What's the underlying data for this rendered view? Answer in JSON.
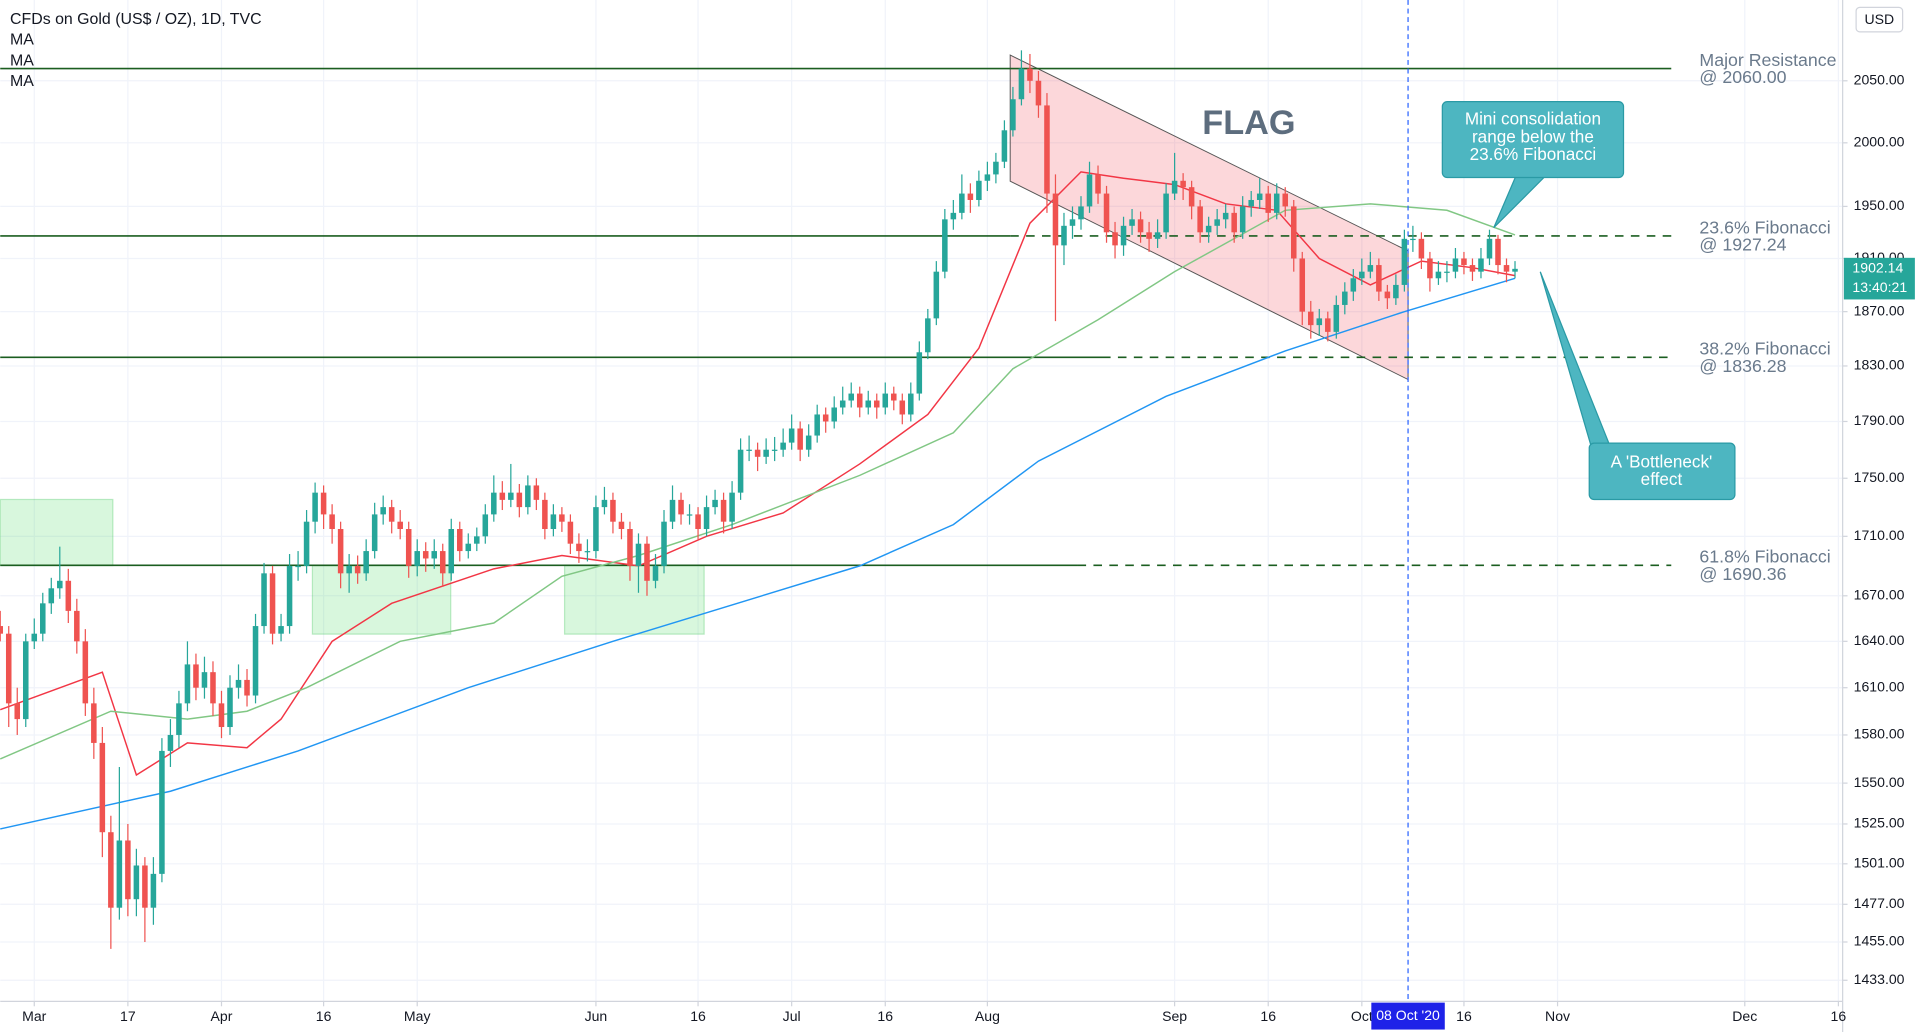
{
  "chart_data": {
    "type": "candlestick",
    "title": "CFDs on Gold (US$ / OZ), 1D, TVC",
    "currency": "USD",
    "pattern_label": "FLAG",
    "crosshair_label": "08 Oct '20",
    "last_price": {
      "value": 1902.14,
      "label": "1902.14"
    },
    "countdown": "13:40:21",
    "log_scale": true,
    "grid": true,
    "up_color": "#26a69a",
    "down_color": "#ef5350",
    "xlim": [
      0,
      216.5
    ],
    "ylim": [
      1421,
      2117
    ],
    "xticks": [
      {
        "value": 4,
        "label": "Mar"
      },
      {
        "value": 15,
        "label": "17"
      },
      {
        "value": 26,
        "label": "Apr"
      },
      {
        "value": 38,
        "label": "16"
      },
      {
        "value": 49,
        "label": "May"
      },
      {
        "value": 70,
        "label": "Jun"
      },
      {
        "value": 82,
        "label": "16"
      },
      {
        "value": 93,
        "label": "Jul"
      },
      {
        "value": 104,
        "label": "16"
      },
      {
        "value": 116,
        "label": "Aug"
      },
      {
        "value": 138,
        "label": "Sep"
      },
      {
        "value": 149,
        "label": "16"
      },
      {
        "value": 160,
        "label": "Oct"
      },
      {
        "value": 172,
        "label": "16"
      },
      {
        "value": 183,
        "label": "Nov"
      },
      {
        "value": 205,
        "label": "Dec"
      },
      {
        "value": 216,
        "label": "16"
      }
    ],
    "yticks": [
      {
        "value": 2050,
        "label": "2050.00"
      },
      {
        "value": 2000,
        "label": "2000.00"
      },
      {
        "value": 1950,
        "label": "1950.00"
      },
      {
        "value": 1910,
        "label": "1910.00"
      },
      {
        "value": 1870,
        "label": "1870.00"
      },
      {
        "value": 1830,
        "label": "1830.00"
      },
      {
        "value": 1790,
        "label": "1790.00"
      },
      {
        "value": 1750,
        "label": "1750.00"
      },
      {
        "value": 1710,
        "label": "1710.00"
      },
      {
        "value": 1670,
        "label": "1670.00"
      },
      {
        "value": 1640,
        "label": "1640.00"
      },
      {
        "value": 1610,
        "label": "1610.00"
      },
      {
        "value": 1580,
        "label": "1580.00"
      },
      {
        "value": 1550,
        "label": "1550.00"
      },
      {
        "value": 1525,
        "label": "1525.00"
      },
      {
        "value": 1501,
        "label": "1501.00"
      },
      {
        "value": 1477,
        "label": "1477.00"
      },
      {
        "value": 1455,
        "label": "1455.00"
      },
      {
        "value": 1433,
        "label": "1433.00"
      }
    ],
    "ohlc": [
      [
        1650,
        1660,
        1640,
        1645
      ],
      [
        1645,
        1650,
        1585,
        1600
      ],
      [
        1600,
        1610,
        1580,
        1590
      ],
      [
        1590,
        1645,
        1585,
        1640
      ],
      [
        1640,
        1655,
        1635,
        1645
      ],
      [
        1645,
        1672,
        1640,
        1665
      ],
      [
        1665,
        1682,
        1658,
        1675
      ],
      [
        1675,
        1703,
        1668,
        1680
      ],
      [
        1680,
        1688,
        1652,
        1660
      ],
      [
        1660,
        1668,
        1632,
        1640
      ],
      [
        1640,
        1648,
        1592,
        1600
      ],
      [
        1600,
        1610,
        1565,
        1575
      ],
      [
        1575,
        1585,
        1505,
        1520
      ],
      [
        1520,
        1530,
        1451,
        1475
      ],
      [
        1475,
        1560,
        1468,
        1515
      ],
      [
        1515,
        1525,
        1470,
        1480
      ],
      [
        1480,
        1510,
        1470,
        1500
      ],
      [
        1500,
        1505,
        1455,
        1475
      ],
      [
        1475,
        1505,
        1465,
        1495
      ],
      [
        1495,
        1578,
        1490,
        1570
      ],
      [
        1570,
        1590,
        1560,
        1580
      ],
      [
        1580,
        1608,
        1572,
        1600
      ],
      [
        1600,
        1640,
        1595,
        1625
      ],
      [
        1625,
        1632,
        1602,
        1610
      ],
      [
        1610,
        1630,
        1603,
        1620
      ],
      [
        1620,
        1627,
        1592,
        1600
      ],
      [
        1600,
        1608,
        1578,
        1585
      ],
      [
        1585,
        1618,
        1580,
        1610
      ],
      [
        1610,
        1625,
        1603,
        1615
      ],
      [
        1615,
        1622,
        1598,
        1605
      ],
      [
        1605,
        1658,
        1600,
        1650
      ],
      [
        1650,
        1692,
        1645,
        1685
      ],
      [
        1685,
        1690,
        1638,
        1645
      ],
      [
        1645,
        1658,
        1640,
        1650
      ],
      [
        1650,
        1698,
        1645,
        1690
      ],
      [
        1690,
        1700,
        1680,
        1690
      ],
      [
        1690,
        1728,
        1685,
        1720
      ],
      [
        1720,
        1747,
        1712,
        1740
      ],
      [
        1740,
        1745,
        1715,
        1725
      ],
      [
        1725,
        1732,
        1705,
        1715
      ],
      [
        1715,
        1720,
        1675,
        1685
      ],
      [
        1685,
        1698,
        1672,
        1690
      ],
      [
        1690,
        1697,
        1678,
        1685
      ],
      [
        1685,
        1708,
        1680,
        1700
      ],
      [
        1700,
        1733,
        1695,
        1725
      ],
      [
        1725,
        1738,
        1718,
        1730
      ],
      [
        1730,
        1735,
        1712,
        1720
      ],
      [
        1720,
        1728,
        1708,
        1715
      ],
      [
        1715,
        1720,
        1682,
        1690
      ],
      [
        1690,
        1708,
        1683,
        1700
      ],
      [
        1700,
        1706,
        1686,
        1695
      ],
      [
        1695,
        1708,
        1688,
        1700
      ],
      [
        1700,
        1705,
        1676,
        1685
      ],
      [
        1685,
        1722,
        1680,
        1715
      ],
      [
        1715,
        1720,
        1693,
        1700
      ],
      [
        1700,
        1712,
        1695,
        1705
      ],
      [
        1705,
        1716,
        1700,
        1710
      ],
      [
        1710,
        1732,
        1705,
        1725
      ],
      [
        1725,
        1752,
        1720,
        1740
      ],
      [
        1740,
        1748,
        1728,
        1735
      ],
      [
        1735,
        1760,
        1730,
        1740
      ],
      [
        1740,
        1746,
        1723,
        1730
      ],
      [
        1730,
        1752,
        1725,
        1745
      ],
      [
        1745,
        1750,
        1728,
        1735
      ],
      [
        1735,
        1740,
        1708,
        1715
      ],
      [
        1715,
        1732,
        1710,
        1725
      ],
      [
        1725,
        1730,
        1713,
        1720
      ],
      [
        1720,
        1725,
        1698,
        1705
      ],
      [
        1705,
        1712,
        1692,
        1700
      ],
      [
        1700,
        1708,
        1693,
        1700
      ],
      [
        1700,
        1738,
        1695,
        1730
      ],
      [
        1730,
        1744,
        1725,
        1735
      ],
      [
        1735,
        1740,
        1712,
        1720
      ],
      [
        1720,
        1726,
        1708,
        1715
      ],
      [
        1715,
        1720,
        1680,
        1690
      ],
      [
        1690,
        1712,
        1672,
        1705
      ],
      [
        1705,
        1710,
        1670,
        1680
      ],
      [
        1680,
        1698,
        1675,
        1690
      ],
      [
        1690,
        1728,
        1685,
        1720
      ],
      [
        1720,
        1745,
        1715,
        1735
      ],
      [
        1735,
        1740,
        1718,
        1725
      ],
      [
        1725,
        1732,
        1718,
        1725
      ],
      [
        1725,
        1730,
        1708,
        1715
      ],
      [
        1715,
        1738,
        1710,
        1730
      ],
      [
        1730,
        1742,
        1725,
        1735
      ],
      [
        1735,
        1740,
        1712,
        1720
      ],
      [
        1720,
        1748,
        1715,
        1740
      ],
      [
        1740,
        1778,
        1735,
        1770
      ],
      [
        1770,
        1780,
        1762,
        1770
      ],
      [
        1770,
        1775,
        1755,
        1765
      ],
      [
        1765,
        1778,
        1760,
        1770
      ],
      [
        1770,
        1779,
        1762,
        1770
      ],
      [
        1770,
        1785,
        1765,
        1775
      ],
      [
        1775,
        1795,
        1770,
        1785
      ],
      [
        1785,
        1790,
        1762,
        1770
      ],
      [
        1770,
        1788,
        1765,
        1780
      ],
      [
        1780,
        1802,
        1775,
        1795
      ],
      [
        1795,
        1800,
        1782,
        1790
      ],
      [
        1790,
        1808,
        1785,
        1800
      ],
      [
        1800,
        1815,
        1795,
        1805
      ],
      [
        1805,
        1818,
        1800,
        1810
      ],
      [
        1810,
        1815,
        1793,
        1800
      ],
      [
        1800,
        1812,
        1795,
        1805
      ],
      [
        1805,
        1810,
        1792,
        1800
      ],
      [
        1800,
        1818,
        1795,
        1810
      ],
      [
        1810,
        1815,
        1798,
        1805
      ],
      [
        1805,
        1810,
        1788,
        1795
      ],
      [
        1795,
        1818,
        1790,
        1810
      ],
      [
        1810,
        1848,
        1805,
        1840
      ],
      [
        1840,
        1872,
        1835,
        1865
      ],
      [
        1865,
        1908,
        1860,
        1900
      ],
      [
        1900,
        1948,
        1895,
        1940
      ],
      [
        1940,
        1955,
        1932,
        1945
      ],
      [
        1945,
        1975,
        1940,
        1960
      ],
      [
        1960,
        1968,
        1945,
        1955
      ],
      [
        1955,
        1978,
        1950,
        1970
      ],
      [
        1970,
        1985,
        1962,
        1975
      ],
      [
        1975,
        1992,
        1968,
        1985
      ],
      [
        1985,
        2018,
        1980,
        2010
      ],
      [
        2010,
        2045,
        2005,
        2035
      ],
      [
        2035,
        2075,
        2030,
        2060
      ],
      [
        2060,
        2072,
        2040,
        2050
      ],
      [
        2050,
        2058,
        2020,
        2030
      ],
      [
        2030,
        2040,
        1945,
        1960
      ],
      [
        1960,
        1975,
        1863,
        1920
      ],
      [
        1920,
        1945,
        1905,
        1935
      ],
      [
        1935,
        1950,
        1925,
        1940
      ],
      [
        1940,
        1958,
        1932,
        1950
      ],
      [
        1950,
        1985,
        1945,
        1975
      ],
      [
        1975,
        1982,
        1952,
        1960
      ],
      [
        1960,
        1966,
        1922,
        1930
      ],
      [
        1930,
        1938,
        1910,
        1920
      ],
      [
        1920,
        1942,
        1912,
        1935
      ],
      [
        1935,
        1948,
        1928,
        1940
      ],
      [
        1940,
        1946,
        1922,
        1930
      ],
      [
        1930,
        1938,
        1915,
        1925
      ],
      [
        1925,
        1940,
        1918,
        1930
      ],
      [
        1930,
        1968,
        1925,
        1960
      ],
      [
        1960,
        1992,
        1955,
        1970
      ],
      [
        1970,
        1976,
        1955,
        1965
      ],
      [
        1965,
        1970,
        1940,
        1950
      ],
      [
        1950,
        1955,
        1922,
        1930
      ],
      [
        1930,
        1942,
        1922,
        1935
      ],
      [
        1935,
        1948,
        1928,
        1940
      ],
      [
        1940,
        1952,
        1933,
        1945
      ],
      [
        1945,
        1950,
        1922,
        1930
      ],
      [
        1930,
        1958,
        1925,
        1950
      ],
      [
        1950,
        1962,
        1942,
        1955
      ],
      [
        1955,
        1972,
        1948,
        1960
      ],
      [
        1960,
        1966,
        1938,
        1945
      ],
      [
        1945,
        1968,
        1940,
        1960
      ],
      [
        1960,
        1965,
        1942,
        1950
      ],
      [
        1950,
        1955,
        1900,
        1910
      ],
      [
        1910,
        1915,
        1860,
        1870
      ],
      [
        1870,
        1878,
        1850,
        1860
      ],
      [
        1860,
        1872,
        1852,
        1865
      ],
      [
        1865,
        1870,
        1848,
        1855
      ],
      [
        1855,
        1882,
        1850,
        1875
      ],
      [
        1875,
        1892,
        1868,
        1885
      ],
      [
        1885,
        1902,
        1878,
        1895
      ],
      [
        1895,
        1910,
        1890,
        1900
      ],
      [
        1900,
        1915,
        1895,
        1905
      ],
      [
        1905,
        1910,
        1878,
        1885
      ],
      [
        1885,
        1890,
        1872,
        1880
      ],
      [
        1880,
        1898,
        1875,
        1890
      ],
      [
        1890,
        1932,
        1885,
        1925
      ],
      [
        1925,
        1935,
        1915,
        1925
      ],
      [
        1925,
        1930,
        1902,
        1910
      ],
      [
        1910,
        1915,
        1885,
        1895
      ],
      [
        1895,
        1908,
        1890,
        1900
      ],
      [
        1900,
        1908,
        1892,
        1900
      ],
      [
        1900,
        1918,
        1895,
        1910
      ],
      [
        1910,
        1915,
        1898,
        1905
      ],
      [
        1905,
        1910,
        1893,
        1900
      ],
      [
        1900,
        1918,
        1895,
        1910
      ],
      [
        1910,
        1932,
        1905,
        1925
      ],
      [
        1925,
        1928,
        1898,
        1905
      ],
      [
        1905,
        1910,
        1892,
        1900
      ],
      [
        1900,
        1908,
        1895,
        1902.14
      ]
    ],
    "series": [
      {
        "name": "MA",
        "color": "#f23645",
        "x": [
          0,
          12,
          16,
          22,
          29,
          33,
          39,
          46,
          58,
          66,
          75,
          83,
          92,
          101,
          109,
          115,
          121,
          127,
          132,
          138,
          144,
          150,
          155,
          161,
          167,
          173,
          178
        ],
        "values": [
          1596,
          1620,
          1555,
          1575,
          1572,
          1590,
          1640,
          1665,
          1688,
          1697,
          1690,
          1710,
          1726,
          1760,
          1795,
          1843,
          1937,
          1977,
          1972,
          1967,
          1952,
          1947,
          1910,
          1890,
          1908,
          1903,
          1897
        ]
      },
      {
        "name": "MA",
        "color": "#81c784",
        "x": [
          0,
          13,
          22,
          29,
          36,
          47,
          58,
          66,
          75,
          86,
          101,
          112,
          119,
          129,
          138,
          151,
          161,
          170,
          178
        ],
        "values": [
          1565,
          1595,
          1590,
          1595,
          1610,
          1640,
          1652,
          1683,
          1697,
          1718,
          1752,
          1782,
          1828,
          1864,
          1900,
          1947,
          1952,
          1947,
          1928
        ]
      },
      {
        "name": "MA",
        "color": "#2196f3",
        "x": [
          0,
          20,
          35,
          55,
          72,
          101,
          112,
          122,
          137,
          151,
          165,
          178
        ],
        "values": [
          1522,
          1545,
          1570,
          1610,
          1640,
          1690,
          1718,
          1762,
          1808,
          1841,
          1870,
          1895
        ]
      }
    ],
    "levels": [
      {
        "value": 2060,
        "name": "Major Resistance",
        "label": "@ 2060.00"
      },
      {
        "value": 1927.24,
        "name": "23.6% Fibonacci",
        "label": "@ 1927.24"
      },
      {
        "value": 1836.28,
        "name": "38.2% Fibonacci",
        "label": "@ 1836.28"
      },
      {
        "value": 1690.36,
        "name": "61.8% Fibonacci",
        "label": "@ 1690.36"
      }
    ],
    "callouts": [
      {
        "lines": [
          "Mini consolidation",
          "range below the",
          "23.6% Fibonacci"
        ]
      },
      {
        "lines": [
          "A 'Bottleneck'",
          "effect"
        ]
      }
    ]
  }
}
